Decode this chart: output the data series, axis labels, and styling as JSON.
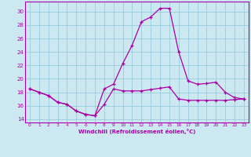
{
  "xlabel": "Windchill (Refroidissement éolien,°C)",
  "bg_color": "#cce8f0",
  "line_color": "#aa00aa",
  "grid_color": "#99ccdd",
  "x": [
    0,
    1,
    2,
    3,
    4,
    5,
    6,
    7,
    8,
    9,
    10,
    11,
    12,
    13,
    14,
    15,
    16,
    17,
    18,
    19,
    20,
    21,
    22,
    23
  ],
  "series1": [
    18.5,
    18.0,
    17.5,
    16.5,
    16.2,
    15.2,
    14.7,
    14.5,
    16.2,
    18.5,
    18.2,
    18.2,
    18.2,
    18.4,
    18.6,
    18.8,
    17.0,
    16.8,
    16.8,
    16.8,
    16.8,
    16.8,
    16.9,
    17.0
  ],
  "series2": [
    18.5,
    18.0,
    17.5,
    16.5,
    16.2,
    15.2,
    14.7,
    14.5,
    18.5,
    19.2,
    22.3,
    25.0,
    28.5,
    29.2,
    30.5,
    30.5,
    24.0,
    19.7,
    19.2,
    19.3,
    19.5,
    18.0,
    17.2,
    17.0
  ],
  "ylim": [
    13.5,
    31.5
  ],
  "xlim": [
    -0.5,
    23.5
  ],
  "yticks": [
    14,
    16,
    18,
    20,
    22,
    24,
    26,
    28,
    30
  ],
  "xticks": [
    0,
    1,
    2,
    3,
    4,
    5,
    6,
    7,
    8,
    9,
    10,
    11,
    12,
    13,
    14,
    15,
    16,
    17,
    18,
    19,
    20,
    21,
    22,
    23
  ]
}
